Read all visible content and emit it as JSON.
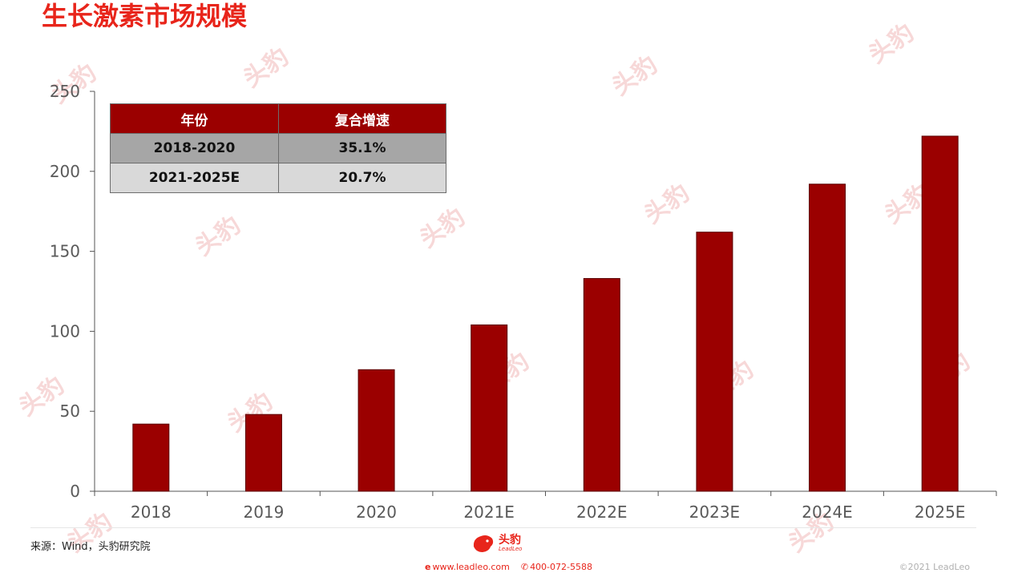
{
  "title": "生长激素市场规模",
  "watermark_text": "头豹",
  "cagr_table": {
    "headers": [
      "年份",
      "复合增速"
    ],
    "rows": [
      [
        "2018-2020",
        "35.1%"
      ],
      [
        "2021-2025E",
        "20.7%"
      ]
    ]
  },
  "source": "来源：Wind，头豹研究院",
  "brand": {
    "name": "头豹",
    "sub": "LeadLeo",
    "website": "www.leadleo.com",
    "phone": "400-072-5588",
    "copyright": "©2021 LeadLeo"
  },
  "colors": {
    "bar": "#9b0000",
    "title": "#e8251b",
    "axis": "#555555"
  },
  "chart_data": {
    "type": "bar",
    "categories": [
      "2018",
      "2019",
      "2020",
      "2021E",
      "2022E",
      "2023E",
      "2024E",
      "2025E"
    ],
    "values": [
      42,
      48,
      76,
      104,
      133,
      162,
      192,
      222
    ],
    "ylim": [
      0,
      250
    ],
    "yticks": [
      0,
      50,
      100,
      150,
      200,
      250
    ],
    "grid": false,
    "legend": "none"
  }
}
